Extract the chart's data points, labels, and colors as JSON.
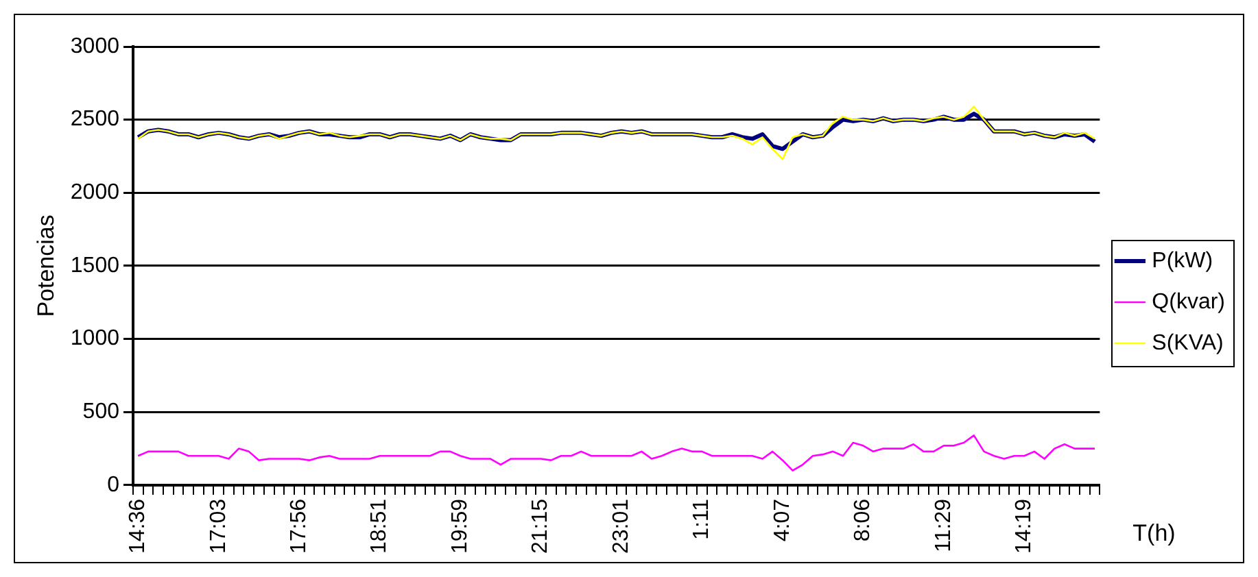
{
  "chart_data": {
    "type": "line",
    "xlabel": "T(h)",
    "ylabel": "Potencias",
    "categories": [
      "14:36",
      null,
      null,
      null,
      null,
      null,
      null,
      null,
      "17:03",
      null,
      null,
      null,
      null,
      null,
      null,
      null,
      "17:56",
      null,
      null,
      null,
      null,
      null,
      null,
      null,
      "18:51",
      null,
      null,
      null,
      null,
      null,
      null,
      null,
      "19:59",
      null,
      null,
      null,
      null,
      null,
      null,
      null,
      "21:15",
      null,
      null,
      null,
      null,
      null,
      null,
      null,
      "23:01",
      null,
      null,
      null,
      null,
      null,
      null,
      null,
      "1:11",
      null,
      null,
      null,
      null,
      null,
      null,
      null,
      "4:07",
      null,
      null,
      null,
      null,
      null,
      null,
      null,
      "8:06",
      null,
      null,
      null,
      null,
      null,
      null,
      null,
      "11:29",
      null,
      null,
      null,
      null,
      null,
      null,
      null,
      "14:19",
      null,
      null,
      null,
      null,
      null,
      null,
      null
    ],
    "series": [
      {
        "name": "P(kW)",
        "color": "#000080",
        "values": [
          2380,
          2420,
          2430,
          2420,
          2400,
          2400,
          2380,
          2400,
          2410,
          2400,
          2380,
          2370,
          2390,
          2400,
          2380,
          2390,
          2410,
          2420,
          2400,
          2400,
          2390,
          2380,
          2380,
          2400,
          2400,
          2380,
          2400,
          2400,
          2390,
          2380,
          2370,
          2390,
          2360,
          2400,
          2380,
          2370,
          2360,
          2360,
          2400,
          2400,
          2400,
          2400,
          2410,
          2410,
          2410,
          2400,
          2390,
          2410,
          2420,
          2410,
          2420,
          2400,
          2400,
          2400,
          2400,
          2400,
          2390,
          2380,
          2380,
          2400,
          2380,
          2370,
          2400,
          2320,
          2300,
          2350,
          2400,
          2380,
          2390,
          2450,
          2500,
          2490,
          2500,
          2490,
          2510,
          2490,
          2500,
          2500,
          2490,
          2500,
          2520,
          2500,
          2500,
          2540,
          2500,
          2420,
          2420,
          2420,
          2400,
          2410,
          2390,
          2380,
          2400,
          2390,
          2400,
          2350
        ]
      },
      {
        "name": "Q(kvar)",
        "color": "#ff00ff",
        "values": [
          200,
          230,
          230,
          230,
          230,
          200,
          200,
          200,
          200,
          180,
          250,
          230,
          170,
          180,
          180,
          180,
          180,
          170,
          190,
          200,
          180,
          180,
          180,
          180,
          200,
          200,
          200,
          200,
          200,
          200,
          230,
          230,
          200,
          180,
          180,
          180,
          140,
          180,
          180,
          180,
          180,
          170,
          200,
          200,
          230,
          200,
          200,
          200,
          200,
          200,
          230,
          180,
          200,
          230,
          250,
          230,
          230,
          200,
          200,
          200,
          200,
          200,
          180,
          230,
          170,
          100,
          140,
          200,
          210,
          230,
          200,
          290,
          270,
          230,
          250,
          250,
          250,
          280,
          230,
          230,
          270,
          270,
          290,
          340,
          230,
          200,
          180,
          200,
          200,
          230,
          180,
          250,
          280,
          250,
          250,
          250
        ]
      },
      {
        "name": "S(KVA)",
        "color": "#ffff00",
        "values": [
          2370,
          2420,
          2430,
          2420,
          2400,
          2400,
          2380,
          2400,
          2410,
          2400,
          2380,
          2370,
          2390,
          2400,
          2370,
          2390,
          2410,
          2420,
          2400,
          2410,
          2390,
          2380,
          2390,
          2400,
          2400,
          2380,
          2400,
          2400,
          2390,
          2380,
          2370,
          2390,
          2360,
          2400,
          2380,
          2370,
          2370,
          2360,
          2400,
          2400,
          2400,
          2400,
          2410,
          2410,
          2410,
          2400,
          2390,
          2410,
          2420,
          2410,
          2420,
          2400,
          2400,
          2400,
          2400,
          2400,
          2390,
          2380,
          2380,
          2390,
          2370,
          2330,
          2380,
          2300,
          2230,
          2380,
          2400,
          2380,
          2390,
          2480,
          2520,
          2500,
          2500,
          2490,
          2510,
          2490,
          2500,
          2500,
          2490,
          2510,
          2520,
          2500,
          2520,
          2590,
          2500,
          2420,
          2420,
          2420,
          2400,
          2410,
          2390,
          2380,
          2410,
          2390,
          2410,
          2370
        ]
      }
    ],
    "ylim": [
      0,
      3000
    ],
    "yticks": [
      0,
      500,
      1000,
      1500,
      2000,
      2500,
      3000
    ],
    "grid": "y",
    "legend": "right",
    "marker": "none",
    "line_style": "solid"
  }
}
